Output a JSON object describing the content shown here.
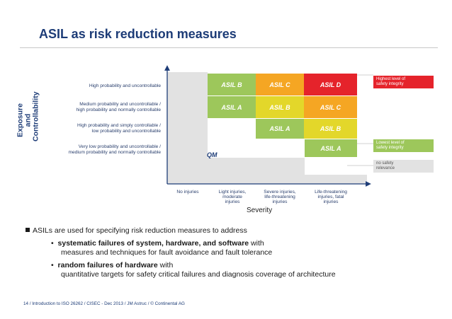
{
  "slide_title": "ASIL as risk reduction measures",
  "diagram": {
    "y_axis_title": "Exposure and\nControllability",
    "y_labels": [
      "High probability and uncontrollable",
      "Medium probability and uncontrollable /\nhigh probability and normally controllable",
      "High probability and simply controllable /\nlow probability and uncontrollable",
      "Very low probability and uncontrollable /\nmedium probability and normally controllable"
    ],
    "x_axis_title": "Severity",
    "x_labels": [
      "No injuries",
      "Light injuries,\nmoderate\ninjuries",
      "Severe injuries,\nlife-threatening\ninjuries",
      "Life-threatening\ninjuries, fatal\ninjuries"
    ],
    "qm_label": "QM",
    "cells": [
      {
        "label": "ASIL B",
        "color": "#9dc75b"
      },
      {
        "label": "ASIL C",
        "color": "#f5a623"
      },
      {
        "label": "ASIL D",
        "color": "#e5232b"
      },
      {
        "label": "ASIL A",
        "color": "#9dc75b"
      },
      {
        "label": "ASIL B",
        "color": "#e3d72a"
      },
      {
        "label": "ASIL C",
        "color": "#f5a623"
      },
      {
        "label": "ASIL A",
        "color": "#9dc75b"
      },
      {
        "label": "ASIL B",
        "color": "#e3d72a"
      },
      {
        "label": "ASIL A",
        "color": "#9dc75b"
      }
    ],
    "legend": {
      "highest": "Highest level of\nsafety integrity",
      "lowest": "Lowest level of\nsafety integrity",
      "no_relevance": "no safety\nrelevance"
    },
    "colors": {
      "qm": "#e2e2e2",
      "green": "#9dc75b",
      "yellow": "#e3d72a",
      "orange": "#f5a623",
      "red": "#e5232b",
      "axis": "#1d3c77"
    }
  },
  "bullets": {
    "main": "ASILs are used for specifying risk reduction measures to address",
    "item1_bold": "systematic failures of system, hardware, and software",
    "item1_rest": " with",
    "item1_line2": "measures and techniques for fault avoidance and fault tolerance",
    "item2_bold": "random failures of hardware",
    "item2_rest": " with",
    "item2_line2": "quantitative targets for safety critical failures and diagnosis coverage of architecture"
  },
  "footer": "14 / Introduction to ISO 26262 / CISEC - Dec 2013 / JM Astruc / © Continental AG"
}
